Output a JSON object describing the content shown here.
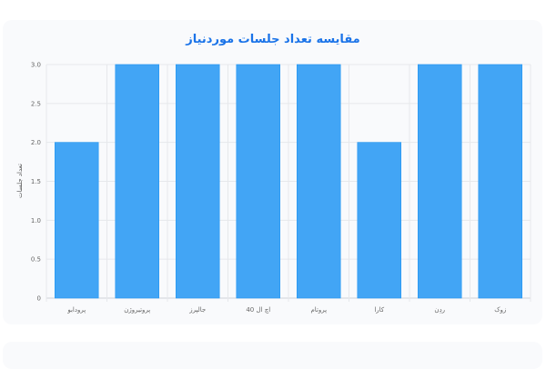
{
  "chart_data": {
    "type": "bar",
    "title": "مقایسه تعداد جلسات موردنیاز",
    "xlabel": "",
    "ylabel": "تعداد جلسات",
    "categories": [
      "پرودابو",
      "پروتیروژن",
      "جالپرز",
      "اچ ال 40",
      "پروتام",
      "کارا",
      "ردِن",
      "زوک"
    ],
    "values": [
      2,
      3,
      3,
      3,
      3,
      2,
      3,
      3
    ],
    "ylim": [
      0,
      3
    ],
    "yticks": [
      "0",
      "0.5",
      "1.0",
      "1.5",
      "2.0",
      "2.5",
      "3.0"
    ],
    "grid": true,
    "bar_color": "#42a5f5",
    "bar_edge_color": "#2196f3"
  }
}
